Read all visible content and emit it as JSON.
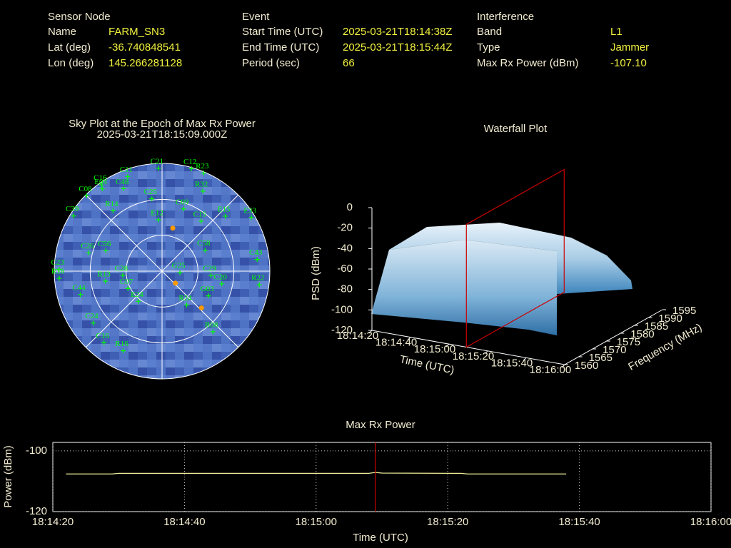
{
  "header": [
    {
      "title": "Sensor Node",
      "rows": [
        [
          "Name",
          "FARM_SN3"
        ],
        [
          "Lat (deg)",
          "-36.740848541"
        ],
        [
          "Lon (deg)",
          "145.266281128"
        ]
      ]
    },
    {
      "title": "Event",
      "rows": [
        [
          "Start Time (UTC)",
          "2025-03-21T18:14:38Z"
        ],
        [
          "End Time (UTC)",
          "2025-03-21T18:15:44Z"
        ],
        [
          "Period (sec)",
          "66"
        ]
      ]
    },
    {
      "title": "Interference",
      "rows": [
        [
          "Band",
          "L1"
        ],
        [
          "Type",
          "Jammer"
        ],
        [
          "Max Rx Power (dBm)",
          "-107.10"
        ]
      ]
    }
  ],
  "chart_data": [
    {
      "type": "skyplot",
      "title": "Sky Plot at the Epoch of Max Rx Power",
      "subtitle": "2025-03-21T18:15:09.000Z",
      "color": "#00ff00",
      "labels": [
        "C21",
        "C12",
        "R23",
        "C16",
        "E04",
        "C11",
        "R32",
        "C08",
        "C48",
        "C25",
        "C09",
        "C39",
        "R14",
        "E12",
        "C15",
        "E15",
        "E33",
        "C26",
        "C56",
        "C58",
        "C43",
        "C23",
        "R18",
        "C28",
        "G25",
        "C29",
        "C20",
        "R22",
        "R13",
        "C07",
        "C44",
        "E24",
        "G03",
        "R24",
        "C24",
        "R08",
        "C16",
        "R16"
      ],
      "azimuth": [
        358,
        16,
        23,
        325,
        324,
        340,
        27,
        315,
        335,
        352,
        19,
        302,
        321,
        356,
        38,
        49,
        59,
        284,
        290,
        64,
        83,
        271,
        266,
        264,
        95,
        95,
        102,
        98,
        260,
        243,
        254,
        218,
        118,
        144,
        233,
        140,
        219,
        206
      ],
      "elevation": [
        4,
        1,
        1,
        2,
        5,
        6,
        15,
        1,
        14,
        29,
        35,
        3,
        25,
        47,
        37,
        20,
        3,
        27,
        40,
        50,
        10,
        4,
        4,
        57,
        75,
        49,
        39,
        8,
        42,
        58,
        19,
        58,
        46,
        55,
        18,
        24,
        13,
        16
      ],
      "highlight": {
        "color": "#ff9900",
        "azimuth": [
          14,
          132,
          133
        ],
        "elevation": [
          53,
          75,
          45
        ]
      }
    },
    {
      "type": "waterfall",
      "title": "Waterfall Plot",
      "xlabel": "Time (UTC)",
      "ylabel": "Frequency (MHz)",
      "zlabel": "PSD (dBm)",
      "xlim": [
        "18:14:20",
        "18:16:00"
      ],
      "xticks": [
        "18:14:20",
        "18:14:40",
        "18:15:00",
        "18:15:20",
        "18:15:40",
        "18:16:00"
      ],
      "ylim": [
        1560,
        1595
      ],
      "yticks": [
        1560,
        1565,
        1570,
        1575,
        1580,
        1585,
        1590,
        1595
      ],
      "zlim": [
        -120,
        0
      ],
      "zticks": [
        0,
        -20,
        -40,
        -60,
        -80,
        -100,
        -120
      ],
      "marker_x": "18:15:09",
      "marker_color": "#cc0000"
    },
    {
      "type": "line",
      "title": "Max Rx Power",
      "xlabel": "Time (UTC)",
      "ylabel": "Power (dBm)",
      "x": [
        "18:14:22",
        "18:14:29",
        "18:14:30",
        "18:15:08",
        "18:15:09",
        "18:15:10",
        "18:15:22",
        "18:15:23",
        "18:15:38"
      ],
      "values": [
        -107.6,
        -107.6,
        -107.4,
        -107.4,
        -107.1,
        -107.3,
        -107.4,
        -107.6,
        -107.6
      ],
      "color": "#eeee99",
      "xlim": [
        "18:14:20",
        "18:16:00"
      ],
      "xticks": [
        "18:14:20",
        "18:14:40",
        "18:15:00",
        "18:15:20",
        "18:15:40",
        "18:16:00"
      ],
      "ylim": [
        -120,
        -97.2
      ],
      "yticks": [
        -120,
        -100
      ],
      "grid": true,
      "marker_x": "18:15:09",
      "marker_color": "#cc0000"
    }
  ]
}
